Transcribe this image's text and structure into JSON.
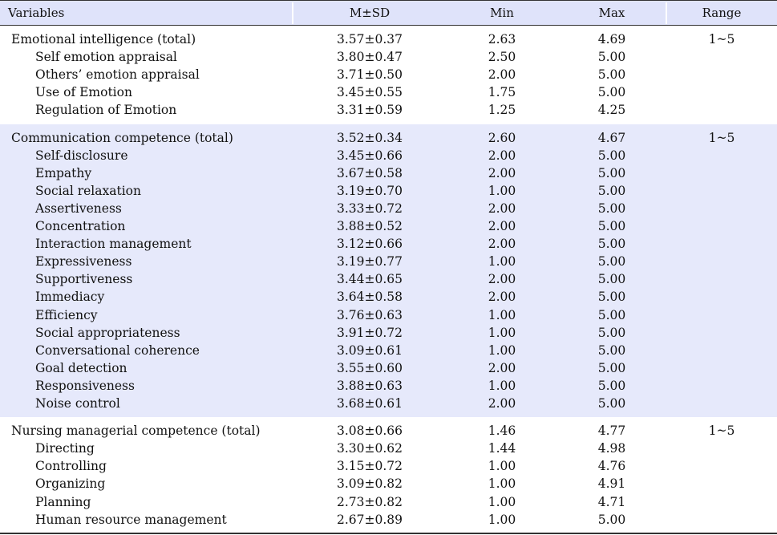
{
  "header": {
    "variables": "Variables",
    "msd": "M±SD",
    "min": "Min",
    "max": "Max",
    "range": "Range"
  },
  "sections": [
    {
      "shaded": false,
      "rows": [
        {
          "label": "Emotional intelligence (total)",
          "msd": "3.57±0.37",
          "min": "2.63",
          "max": "4.69",
          "range": "1~5",
          "sub": false
        },
        {
          "label": "Self emotion appraisal",
          "msd": "3.80±0.47",
          "min": "2.50",
          "max": "5.00",
          "range": "",
          "sub": true
        },
        {
          "label": "Others’ emotion appraisal",
          "msd": "3.71±0.50",
          "min": "2.00",
          "max": "5.00",
          "range": "",
          "sub": true
        },
        {
          "label": "Use of Emotion",
          "msd": "3.45±0.55",
          "min": "1.75",
          "max": "5.00",
          "range": "",
          "sub": true
        },
        {
          "label": "Regulation of Emotion",
          "msd": "3.31±0.59",
          "min": "1.25",
          "max": "4.25",
          "range": "",
          "sub": true
        }
      ]
    },
    {
      "shaded": true,
      "rows": [
        {
          "label": "Communication competence (total)",
          "msd": "3.52±0.34",
          "min": "2.60",
          "max": "4.67",
          "range": "1~5",
          "sub": false
        },
        {
          "label": "Self-disclosure",
          "msd": "3.45±0.66",
          "min": "2.00",
          "max": "5.00",
          "range": "",
          "sub": true
        },
        {
          "label": "Empathy",
          "msd": "3.67±0.58",
          "min": "2.00",
          "max": "5.00",
          "range": "",
          "sub": true
        },
        {
          "label": "Social relaxation",
          "msd": "3.19±0.70",
          "min": "1.00",
          "max": "5.00",
          "range": "",
          "sub": true
        },
        {
          "label": "Assertiveness",
          "msd": "3.33±0.72",
          "min": "2.00",
          "max": "5.00",
          "range": "",
          "sub": true
        },
        {
          "label": "Concentration",
          "msd": "3.88±0.52",
          "min": "2.00",
          "max": "5.00",
          "range": "",
          "sub": true
        },
        {
          "label": "Interaction management",
          "msd": "3.12±0.66",
          "min": "2.00",
          "max": "5.00",
          "range": "",
          "sub": true
        },
        {
          "label": "Expressiveness",
          "msd": "3.19±0.77",
          "min": "1.00",
          "max": "5.00",
          "range": "",
          "sub": true
        },
        {
          "label": "Supportiveness",
          "msd": "3.44±0.65",
          "min": "2.00",
          "max": "5.00",
          "range": "",
          "sub": true
        },
        {
          "label": "Immediacy",
          "msd": "3.64±0.58",
          "min": "2.00",
          "max": "5.00",
          "range": "",
          "sub": true
        },
        {
          "label": "Efficiency",
          "msd": "3.76±0.63",
          "min": "1.00",
          "max": "5.00",
          "range": "",
          "sub": true
        },
        {
          "label": "Social appropriateness",
          "msd": "3.91±0.72",
          "min": "1.00",
          "max": "5.00",
          "range": "",
          "sub": true
        },
        {
          "label": "Conversational coherence",
          "msd": "3.09±0.61",
          "min": "1.00",
          "max": "5.00",
          "range": "",
          "sub": true
        },
        {
          "label": "Goal detection",
          "msd": "3.55±0.60",
          "min": "2.00",
          "max": "5.00",
          "range": "",
          "sub": true
        },
        {
          "label": "Responsiveness",
          "msd": "3.88±0.63",
          "min": "1.00",
          "max": "5.00",
          "range": "",
          "sub": true
        },
        {
          "label": "Noise control",
          "msd": "3.68±0.61",
          "min": "2.00",
          "max": "5.00",
          "range": "",
          "sub": true
        }
      ]
    },
    {
      "shaded": false,
      "rows": [
        {
          "label": "Nursing managerial competence (total)",
          "msd": "3.08±0.66",
          "min": "1.46",
          "max": "4.77",
          "range": "1~5",
          "sub": false
        },
        {
          "label": "Directing",
          "msd": "3.30±0.62",
          "min": "1.44",
          "max": "4.98",
          "range": "",
          "sub": true
        },
        {
          "label": "Controlling",
          "msd": "3.15±0.72",
          "min": "1.00",
          "max": "4.76",
          "range": "",
          "sub": true
        },
        {
          "label": "Organizing",
          "msd": "3.09±0.82",
          "min": "1.00",
          "max": "4.91",
          "range": "",
          "sub": true
        },
        {
          "label": "Planning",
          "msd": "2.73±0.82",
          "min": "1.00",
          "max": "4.71",
          "range": "",
          "sub": true
        },
        {
          "label": "Human resource management",
          "msd": "2.67±0.89",
          "min": "1.00",
          "max": "5.00",
          "range": "",
          "sub": true
        }
      ]
    }
  ]
}
